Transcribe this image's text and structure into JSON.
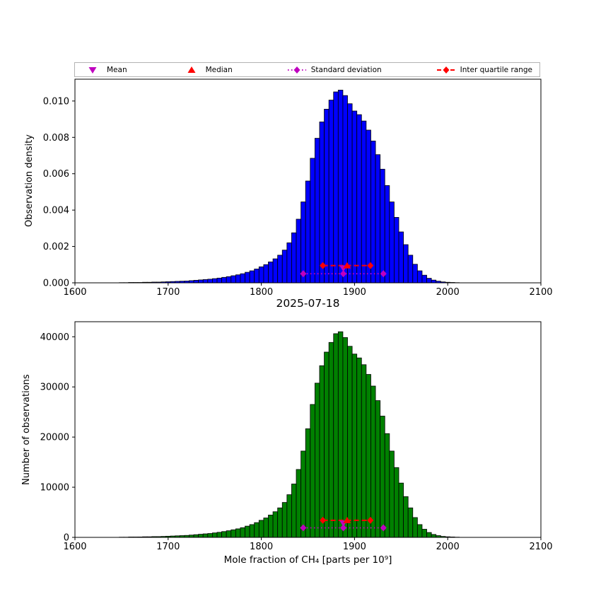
{
  "figure": {
    "background": "#ffffff"
  },
  "title": "2025-07-18",
  "xlabel": "Mole fraction of CH₄ [parts per 10⁹]",
  "legend": {
    "items": [
      {
        "label": "Mean",
        "marker": "triangle-down",
        "color": "#bf00bf"
      },
      {
        "label": "Median",
        "marker": "triangle-up",
        "color": "#ff0000"
      },
      {
        "label": "Standard deviation",
        "marker": "diamond-dotted-line",
        "color": "#bf00bf"
      },
      {
        "label": "Inter quartile range",
        "marker": "diamond-dashed-line",
        "color": "#ff0000"
      }
    ]
  },
  "chart_data": [
    {
      "type": "bar",
      "name": "observation-density",
      "ylabel": "Observation density",
      "bar_color": "#0000ff",
      "edge_color": "#000000",
      "xlim": [
        1600,
        2100
      ],
      "ylim": [
        0,
        0.0112
      ],
      "xticks": [
        1600,
        1700,
        1800,
        1900,
        2000,
        2100
      ],
      "xtick_labels": [
        "1600",
        "1700",
        "1800",
        "1900",
        "2000",
        "2100"
      ],
      "yticks": [
        0,
        0.002,
        0.004,
        0.006,
        0.008,
        0.01
      ],
      "ytick_labels": [
        "0.000",
        "0.002",
        "0.004",
        "0.006",
        "0.008",
        "0.010"
      ],
      "bin_width": 5,
      "first_bin_center": 1650,
      "values": [
        1e-05,
        1e-05,
        2e-05,
        2e-05,
        2e-05,
        3e-05,
        3e-05,
        4e-05,
        4e-05,
        5e-05,
        6e-05,
        7e-05,
        8e-05,
        9e-05,
        0.0001,
        0.00012,
        0.00014,
        0.00016,
        0.00018,
        0.0002,
        0.00023,
        0.00026,
        0.0003,
        0.00034,
        0.00039,
        0.00044,
        0.0005,
        0.00058,
        0.00066,
        0.00076,
        0.00088,
        0.001,
        0.00115,
        0.00132,
        0.00152,
        0.0018,
        0.0022,
        0.00275,
        0.0035,
        0.00445,
        0.0056,
        0.00685,
        0.00795,
        0.00885,
        0.00955,
        0.01005,
        0.0105,
        0.0106,
        0.0103,
        0.00985,
        0.00945,
        0.00925,
        0.0089,
        0.0084,
        0.0078,
        0.00705,
        0.00625,
        0.00535,
        0.00445,
        0.0036,
        0.0028,
        0.0021,
        0.00152,
        0.00102,
        0.00066,
        0.00042,
        0.00025,
        0.00015,
        9e-05,
        5e-05,
        3e-05,
        2e-05,
        1e-05
      ],
      "markers": {
        "mean": {
          "x": 1888,
          "y": 0.0008,
          "color": "#bf00bf"
        },
        "median": {
          "x": 1892,
          "y": 0.00095,
          "color": "#ff0000"
        },
        "std": {
          "x1": 1845,
          "x2": 1931,
          "y": 0.0005,
          "color": "#bf00bf"
        },
        "iqr": {
          "x1": 1866,
          "x2": 1917,
          "y": 0.00095,
          "color": "#ff0000"
        }
      }
    },
    {
      "type": "bar",
      "name": "number-of-observations",
      "ylabel": "Number of observations",
      "bar_color": "#008000",
      "edge_color": "#000000",
      "xlim": [
        1600,
        2100
      ],
      "ylim": [
        0,
        43000
      ],
      "xticks": [
        1600,
        1700,
        1800,
        1900,
        2000,
        2100
      ],
      "xtick_labels": [
        "1600",
        "1700",
        "1800",
        "1900",
        "2000",
        "2100"
      ],
      "yticks": [
        0,
        10000,
        20000,
        30000,
        40000
      ],
      "ytick_labels": [
        "0",
        "10000",
        "20000",
        "30000",
        "40000"
      ],
      "bin_width": 5,
      "first_bin_center": 1650,
      "values": [
        40,
        40,
        75,
        75,
        80,
        115,
        115,
        155,
        155,
        190,
        230,
        270,
        310,
        350,
        390,
        460,
        540,
        620,
        700,
        770,
        890,
        1010,
        1160,
        1320,
        1510,
        1700,
        1930,
        2240,
        2550,
        2940,
        3400,
        3870,
        4450,
        5110,
        5880,
        6960,
        8510,
        10640,
        13540,
        17210,
        21660,
        26500,
        30750,
        34230,
        36940,
        38870,
        40610,
        41000,
        39840,
        38100,
        36550,
        35780,
        34430,
        32490,
        30170,
        27270,
        24180,
        20690,
        17210,
        13920,
        10830,
        8120,
        5880,
        3950,
        2550,
        1620,
        970,
        580,
        350,
        190,
        120,
        80,
        40
      ],
      "markers": {
        "mean": {
          "x": 1888,
          "y": 2800,
          "color": "#bf00bf"
        },
        "median": {
          "x": 1892,
          "y": 3400,
          "color": "#ff0000"
        },
        "std": {
          "x1": 1845,
          "x2": 1931,
          "y": 1900,
          "color": "#bf00bf"
        },
        "iqr": {
          "x1": 1866,
          "x2": 1917,
          "y": 3400,
          "color": "#ff0000"
        }
      }
    }
  ]
}
